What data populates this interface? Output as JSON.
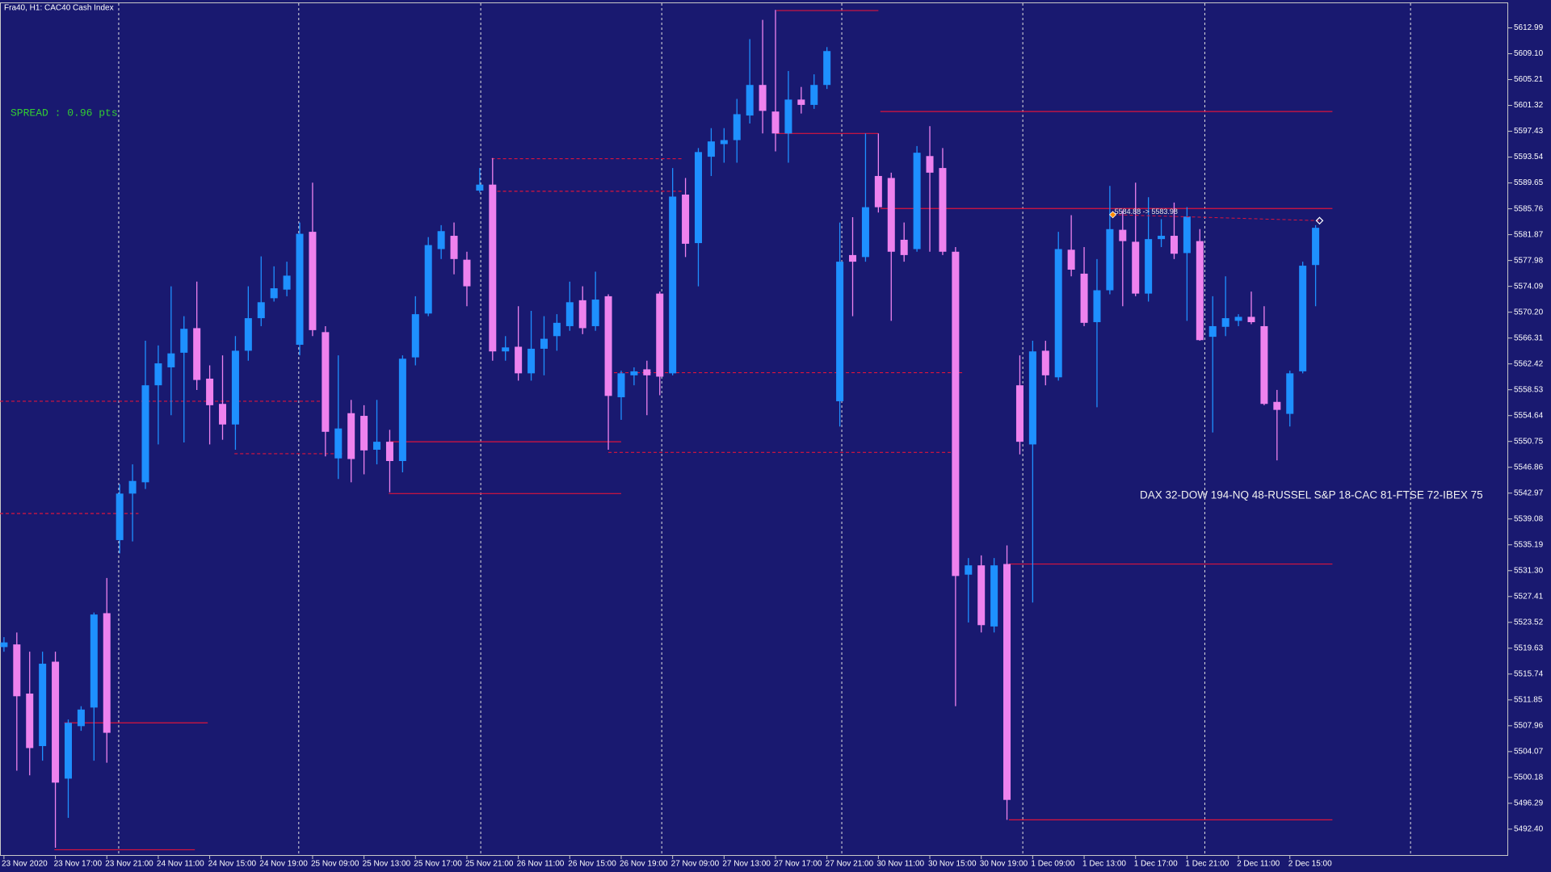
{
  "chart_data": {
    "type": "candlestick",
    "title": "Fra40, H1:  CAC40 Cash Index",
    "spread_text": "SPREAD : 0.96 pts",
    "annotation": "DAX 32-DOW 194-NQ 48-RUSSEL S&P 18-CAC 81-FTSE 72-IBEX 75",
    "up_color": "#1e90ff",
    "down_color": "#ee82ee",
    "level_color": "#dc143c",
    "categories": [
      "23 Nov 2020",
      null,
      null,
      null,
      "23 Nov 17:00",
      null,
      null,
      null,
      "23 Nov 21:00",
      null,
      null,
      null,
      "24 Nov 11:00",
      null,
      null,
      null,
      "24 Nov 15:00",
      null,
      null,
      null,
      "24 Nov 19:00",
      null,
      null,
      null,
      "25 Nov 09:00",
      null,
      null,
      null,
      "25 Nov 13:00",
      null,
      null,
      null,
      "25 Nov 17:00",
      null,
      null,
      null,
      "25 Nov 21:00",
      null,
      null,
      null,
      "26 Nov 11:00",
      null,
      null,
      null,
      "26 Nov 15:00",
      null,
      null,
      null,
      "26 Nov 19:00",
      null,
      null,
      null,
      "27 Nov 09:00",
      null,
      null,
      null,
      "27 Nov 13:00",
      null,
      null,
      null,
      "27 Nov 17:00",
      null,
      null,
      null,
      "27 Nov 21:00",
      null,
      null,
      null,
      "30 Nov 11:00",
      null,
      null,
      null,
      "30 Nov 15:00",
      null,
      null,
      null,
      "30 Nov 19:00",
      null,
      null,
      null,
      "1 Dec 09:00",
      null,
      null,
      null,
      "1 Dec 13:00",
      null,
      null,
      null,
      "1 Dec 17:00",
      null,
      null,
      null,
      "1 Dec 21:00",
      null,
      null,
      null,
      "2 Dec 11:00",
      null,
      null,
      null,
      "2 Dec 15:00",
      null,
      null
    ],
    "open": [
      5519.8,
      5520.2,
      5512.8,
      5504.9,
      5517.6,
      5500.0,
      5507.9,
      5510.7,
      5524.9,
      5535.9,
      5542.9,
      5544.6,
      5559.2,
      5561.9,
      5564.1,
      5567.8,
      5560.2,
      5556.4,
      5553.3,
      5564.4,
      5569.3,
      5572.3,
      5573.6,
      5565.3,
      5582.3,
      5567.2,
      5548.2,
      5555.0,
      5554.6,
      5549.5,
      5550.7,
      5547.8,
      5563.4,
      5570.0,
      5579.7,
      5581.7,
      5578.1,
      5588.5,
      5589.4,
      5564.3,
      5565.0,
      5561.0,
      5564.7,
      5566.6,
      5568.1,
      5572.0,
      5568.1,
      5572.6,
      5557.4,
      5560.7,
      5561.6,
      5573.0,
      5561.0,
      5587.9,
      5580.6,
      5593.6,
      5595.5,
      5596.1,
      5599.8,
      5604.4,
      5600.4,
      5597.1,
      5602.2,
      5601.4,
      5604.4,
      5556.8,
      5578.8,
      5578.5,
      5590.7,
      5590.4,
      5581.1,
      5579.7,
      5593.7,
      5591.9,
      5579.3,
      5530.7,
      5532.1,
      5522.9,
      5532.3,
      5559.2,
      5550.3,
      5564.4,
      5560.4,
      5579.6,
      5576.0,
      5568.7,
      5573.5,
      5582.6,
      5580.8,
      5573.0,
      5581.2,
      5581.7,
      5579.1,
      5580.9,
      5566.5,
      5568.0,
      5568.9,
      5569.5,
      5568.1,
      5556.7,
      5554.9,
      5561.3,
      5577.3
    ],
    "high": [
      5521.3,
      5522.0,
      5519.1,
      5519.1,
      5519.1,
      5508.9,
      5510.9,
      5525.0,
      5530.2,
      5544.3,
      5547.3,
      5565.9,
      5565.2,
      5574.1,
      5569.6,
      5574.8,
      5562.2,
      5563.7,
      5566.6,
      5574.1,
      5578.6,
      5577.1,
      5577.8,
      5583.7,
      5589.7,
      5568.1,
      5563.7,
      5557.0,
      5556.2,
      5557.0,
      5552.5,
      5563.7,
      5572.6,
      5581.5,
      5583.3,
      5583.7,
      5579.3,
      5591.9,
      5593.4,
      5566.6,
      5571.1,
      5570.4,
      5569.6,
      5569.9,
      5574.8,
      5574.1,
      5576.3,
      5572.9,
      5561.4,
      5561.9,
      5562.9,
      5573.3,
      5591.9,
      5590.4,
      5594.9,
      5597.9,
      5597.9,
      5602.3,
      5611.3,
      5614.2,
      5615.7,
      5606.5,
      5604.1,
      5606.0,
      5610.1,
      5583.7,
      5584.5,
      5597.1,
      5597.1,
      5591.2,
      5583.7,
      5595.2,
      5598.2,
      5594.9,
      5580.0,
      5533.2,
      5533.6,
      5533.2,
      5535.1,
      5563.7,
      5565.9,
      5565.9,
      5582.3,
      5584.8,
      5580.0,
      5578.2,
      5589.2,
      5585.5,
      5589.7,
      5587.5,
      5584.2,
      5586.7,
      5586.0,
      5582.7,
      5572.6,
      5575.6,
      5569.9,
      5573.3,
      5571.1,
      5558.5,
      5561.4,
      5577.8,
      5583.3
    ],
    "low": [
      5519.1,
      5501.2,
      5500.5,
      5502.7,
      5489.6,
      5494.1,
      5507.2,
      5502.7,
      5502.4,
      5533.9,
      5535.7,
      5543.6,
      5550.3,
      5554.7,
      5550.6,
      5558.5,
      5550.3,
      5551.0,
      5549.5,
      5562.9,
      5568.1,
      5571.8,
      5572.6,
      5563.7,
      5566.6,
      5548.5,
      5545.1,
      5544.6,
      5545.8,
      5547.3,
      5543.1,
      5546.1,
      5562.2,
      5569.6,
      5578.2,
      5575.9,
      5571.1,
      5588.2,
      5562.9,
      5562.9,
      5559.9,
      5559.9,
      5560.7,
      5564.4,
      5567.4,
      5566.9,
      5567.4,
      5549.5,
      5554.0,
      5559.2,
      5554.7,
      5557.7,
      5560.7,
      5578.5,
      5574.1,
      5590.7,
      5592.7,
      5592.7,
      5598.6,
      5597.1,
      5594.4,
      5592.7,
      5600.1,
      5600.8,
      5603.8,
      5553.0,
      5569.6,
      5577.8,
      5585.2,
      5568.9,
      5577.8,
      5579.3,
      5579.3,
      5578.8,
      5510.9,
      5523.5,
      5522.0,
      5522.0,
      5493.8,
      5548.8,
      5526.5,
      5559.2,
      5559.9,
      5575.6,
      5568.1,
      5555.9,
      5572.9,
      5571.1,
      5572.6,
      5571.8,
      5580.0,
      5578.2,
      5568.9,
      5565.9,
      5552.1,
      5566.6,
      5568.1,
      5568.4,
      5556.2,
      5547.9,
      5553.0,
      5561.0,
      5571.1
    ],
    "close": [
      5520.5,
      5512.4,
      5504.6,
      5517.3,
      5499.4,
      5508.4,
      5510.4,
      5524.7,
      5506.9,
      5542.9,
      5544.8,
      5559.2,
      5562.5,
      5564.0,
      5567.7,
      5560.0,
      5556.2,
      5553.3,
      5564.4,
      5569.3,
      5571.7,
      5573.8,
      5575.7,
      5582.0,
      5567.5,
      5552.2,
      5552.7,
      5548.1,
      5549.4,
      5550.7,
      5547.8,
      5563.2,
      5569.9,
      5580.3,
      5582.4,
      5578.2,
      5574.1,
      5589.4,
      5564.3,
      5564.9,
      5561.0,
      5564.7,
      5566.2,
      5568.6,
      5571.7,
      5567.8,
      5572.1,
      5557.6,
      5561.0,
      5561.3,
      5560.7,
      5560.5,
      5587.6,
      5580.5,
      5594.3,
      5595.9,
      5596.1,
      5600.0,
      5604.4,
      5600.5,
      5597.1,
      5602.2,
      5601.4,
      5604.4,
      5609.5,
      5577.8,
      5577.8,
      5586.0,
      5586.0,
      5579.3,
      5578.8,
      5594.2,
      5591.2,
      5579.3,
      5530.5,
      5532.1,
      5523.1,
      5532.1,
      5496.8,
      5550.7,
      5564.3,
      5560.7,
      5579.7,
      5576.6,
      5568.6,
      5573.5,
      5582.7,
      5580.9,
      5573.0,
      5581.2,
      5581.7,
      5579.0,
      5584.6,
      5566.0,
      5568.1,
      5569.3,
      5569.5,
      5568.7,
      5556.4,
      5555.5,
      5561.0,
      5577.2,
      5582.9
    ],
    "ylim": [
      5488.5,
      5616.7
    ],
    "yticks": [
      5612.99,
      {
        "value": 5609.1,
        "label": "5609.10"
      },
      5605.21,
      5601.32,
      5597.43,
      5593.54,
      5589.65,
      5585.76,
      5581.87,
      5577.98,
      5574.09,
      {
        "value": 5570.2,
        "label": "5570.20"
      },
      5566.31,
      5562.42,
      5558.53,
      5554.64,
      5550.75,
      5546.86,
      5542.97,
      5539.08,
      5535.19,
      {
        "value": 5531.3,
        "label": "5531.30"
      },
      5527.41,
      5523.52,
      5519.63,
      5515.74,
      5511.85,
      5507.96,
      5504.07,
      5500.18,
      5496.29,
      {
        "value": 5492.4,
        "label": "5492.40"
      }
    ],
    "levels": [
      {
        "value": 5489.3,
        "style": "solid"
      },
      {
        "value": 5508.4,
        "style": "solid"
      },
      {
        "value": 5542.9,
        "style": "solid"
      },
      {
        "value": 5550.7,
        "style": "solid"
      },
      {
        "value": 5615.6,
        "style": "solid"
      },
      {
        "value": 5597.1,
        "style": "solid"
      },
      {
        "value": 5600.4,
        "style": "solid"
      },
      {
        "value": 5585.8,
        "style": "solid"
      },
      {
        "value": 5532.3,
        "style": "solid"
      },
      {
        "value": 5493.8,
        "style": "solid"
      },
      {
        "value": 5556.8,
        "style": "dashed"
      },
      {
        "value": 5539.9,
        "style": "dashed"
      },
      {
        "value": 5548.9,
        "style": "dashed"
      },
      {
        "value": 5593.3,
        "style": "dashed"
      },
      {
        "value": 5588.4,
        "style": "dashed"
      },
      {
        "value": 5561.1,
        "style": "dashed"
      },
      {
        "value": 5549.1,
        "style": "dashed"
      }
    ],
    "trendline": {
      "label": "5584.88 -> 5583.98",
      "start": 5584.88,
      "end": 5583.98
    }
  }
}
